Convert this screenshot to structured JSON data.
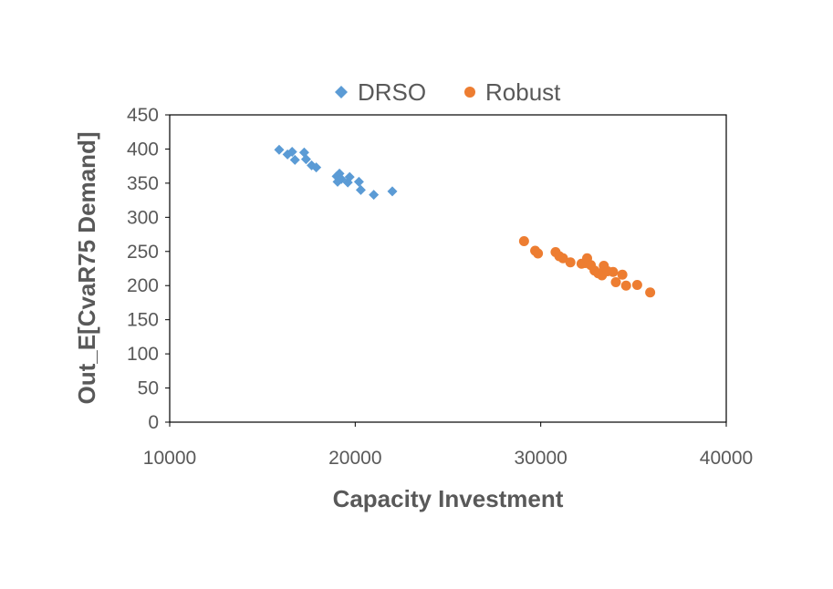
{
  "chart_data": {
    "type": "scatter",
    "title": "",
    "xlabel": "Capacity Investment",
    "ylabel": "Out_E[CvaR75 Demand]",
    "xlim": [
      10000,
      40000
    ],
    "ylim": [
      0,
      450
    ],
    "xticks": [
      10000,
      20000,
      30000,
      40000
    ],
    "yticks": [
      0,
      50,
      100,
      150,
      200,
      250,
      300,
      350,
      400,
      450
    ],
    "grid": false,
    "legend_position": "top",
    "series": [
      {
        "name": "DRSO",
        "marker": "diamond",
        "color": "#5B9BD5",
        "points": [
          [
            15900,
            399
          ],
          [
            16350,
            392
          ],
          [
            16600,
            396
          ],
          [
            16750,
            384
          ],
          [
            17250,
            395
          ],
          [
            17350,
            385
          ],
          [
            17650,
            376
          ],
          [
            17900,
            373
          ],
          [
            19000,
            360
          ],
          [
            19050,
            352
          ],
          [
            19150,
            364
          ],
          [
            19250,
            356
          ],
          [
            19600,
            351
          ],
          [
            19700,
            359
          ],
          [
            20200,
            352
          ],
          [
            20300,
            340
          ],
          [
            21000,
            333
          ],
          [
            22000,
            338
          ]
        ]
      },
      {
        "name": "Robust",
        "marker": "circle",
        "color": "#ED7D31",
        "points": [
          [
            29100,
            265
          ],
          [
            29700,
            251
          ],
          [
            29850,
            247
          ],
          [
            30800,
            249
          ],
          [
            31000,
            243
          ],
          [
            31200,
            240
          ],
          [
            31600,
            234
          ],
          [
            32200,
            232
          ],
          [
            32400,
            233
          ],
          [
            32500,
            240
          ],
          [
            32700,
            230
          ],
          [
            32900,
            222
          ],
          [
            33100,
            218
          ],
          [
            33300,
            215
          ],
          [
            33400,
            229
          ],
          [
            33600,
            221
          ],
          [
            33900,
            220
          ],
          [
            34050,
            205
          ],
          [
            34400,
            216
          ],
          [
            34600,
            200
          ],
          [
            35200,
            201
          ],
          [
            35900,
            190
          ]
        ]
      }
    ]
  }
}
